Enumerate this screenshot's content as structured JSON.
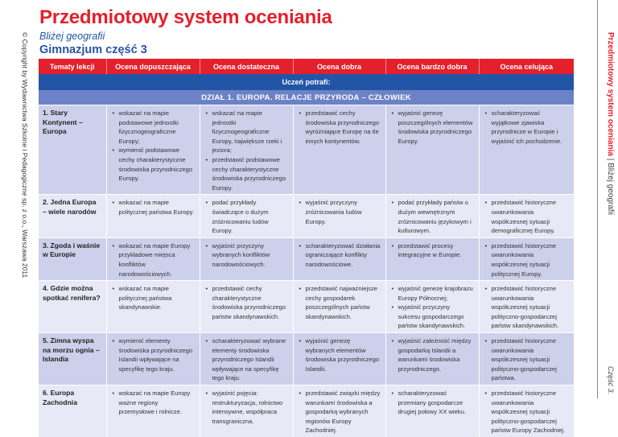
{
  "header": {
    "title": "Przedmiotowy system oceniania",
    "subtitle": "Bliżej geografii",
    "level": "Gimnazjum część 3"
  },
  "side": {
    "copyright": "© Copyright by Wydawnictwa Szkolne i Pedagogiczne sp. z o.o., Warszawa 2011",
    "right_title": "Przedmiotowy system oceniania",
    "right_subtitle": "Bliżej geografii",
    "part": "Część 3."
  },
  "table": {
    "columns": [
      "Tematy lekcji",
      "Ocena dopuszczająca",
      "Ocena dostateczna",
      "Ocena dobra",
      "Ocena bardzo dobra",
      "Ocena celująca"
    ],
    "intro": "Uczeń potrafi:",
    "section": "DZIAŁ 1. EUROPA. RELACJE PRZYRODA – CZŁOWIEK",
    "rows": [
      {
        "topic": "1. Stary Kontynent – Europa",
        "cells": [
          [
            "wskazać na mapie podstawowe jednostki fizycznogeograficzne Europy;",
            "wymienić podstawowe cechy charakterystyczne środowiska przyrodniczego Europy."
          ],
          [
            "wskazać na mapie jednostki fizycznogeograficzne Europy, największe rzeki i jeziora;",
            "przedstawić podstawowe cechy charakterystyczne środowiska przyrodniczego Europy."
          ],
          [
            "przedstawić cechy środowiska przyrodniczego wyróżniające Europę na tle innych kontynentów."
          ],
          [
            "wyjaśnić genezę poszczególnych elementów środowiska przyrodniczego Europy."
          ],
          [
            "scharakteryzować wyjątkowe zjawiska przyrodnicze w Europie i wyjaśnić ich pochodzenie."
          ]
        ]
      },
      {
        "topic": "2. Jedna Europa – wiele narodów",
        "cells": [
          [
            "wskazać na mapie politycznej państwa Europy."
          ],
          [
            "podać przykłady świadczące o dużym zróżnicowaniu ludów Europy."
          ],
          [
            "wyjaśnić przyczyny zróżnicowania ludów Europy."
          ],
          [
            "podać przykłady państw o dużym wewnętrznym zróżnicowaniu językowym i kulturowym."
          ],
          [
            "przedstawić historyczne uwarunkowania współczesnej sytuacji demograficznej Europy."
          ]
        ]
      },
      {
        "topic": "3. Zgoda i waśnie w Europie",
        "cells": [
          [
            "wskazać na mapie Europy przykładowe miejsca konfliktów narodowościowych."
          ],
          [
            "wyjaśnić przyczyny wybranych konfliktów narodowościowych."
          ],
          [
            "scharakteryzować działania ograniczające konflikty narodowościowe."
          ],
          [
            "przedstawić procesy integracyjne w Europie."
          ],
          [
            "przedstawić historyczne uwarunkowania współczesnej sytuacji politycznej Europy."
          ]
        ]
      },
      {
        "topic": "4. Gdzie można spotkać renifera?",
        "cells": [
          [
            "wskazać na mapie politycznej państwa skandynawskie."
          ],
          [
            "przedstawić cechy charakterystyczne środowiska przyrodniczego państw skandynawskich."
          ],
          [
            "przedstawić najważniejsze cechy gospodarek poszczególnych państw skandynawskich."
          ],
          [
            "wyjaśnić genezę krajobrazu Europy Północnej;",
            "wyjaśnić przyczyny sukcesu gospodarczego państw skandynawskich."
          ],
          [
            "przedstawić historyczne uwarunkowania współczesnej sytuacji polityczno-gospodarczej państw skandynawskich."
          ]
        ]
      },
      {
        "topic": "5. Zimna wyspa na morzu ognia – Islandia",
        "cells": [
          [
            "wymienić elementy środowiska przyrodniczego Islandii wpływające na specyfikę tego kraju."
          ],
          [
            "scharakteryzować wybrane elementy środowiska przyrodniczego Islandii wpływające na specyfikę tego kraju."
          ],
          [
            "wyjaśnić genezę wybranych elementów środowiska przyrodniczego Islandii."
          ],
          [
            "wyjaśnić zależność między gospodarką Islandii a warunkami środowiska przyrodniczego."
          ],
          [
            "przedstawić historyczne uwarunkowania współczesnej sytuacji polityczno-gospodarczej państwa."
          ]
        ]
      },
      {
        "topic": "6. Europa Zachodnia",
        "cells": [
          [
            "wskazać na mapie Europy ważne regiony przemysłowe i rolnicze."
          ],
          [
            "wyjaśnić pojęcia: restrukturyzacja, rolnictwo intensywne, współpraca transgraniczna."
          ],
          [
            "przedstawić związki między warunkami środowiska a gospodarką wybranych regionów Europy Zachodniej."
          ],
          [
            "scharakteryzować przemiany gospodarcze drugiej połowy XX wieku."
          ],
          [
            "przedstawić historyczne uwarunkowania współczesnej sytuacji polityczno-gospodarczej państw Europy Zachodniej."
          ]
        ]
      }
    ]
  },
  "colors": {
    "red": "#e3202b",
    "blue": "#2355a6",
    "section": "#6c82c6",
    "row_dark": "#cdd0eb",
    "row_light": "#e8e9f6"
  }
}
